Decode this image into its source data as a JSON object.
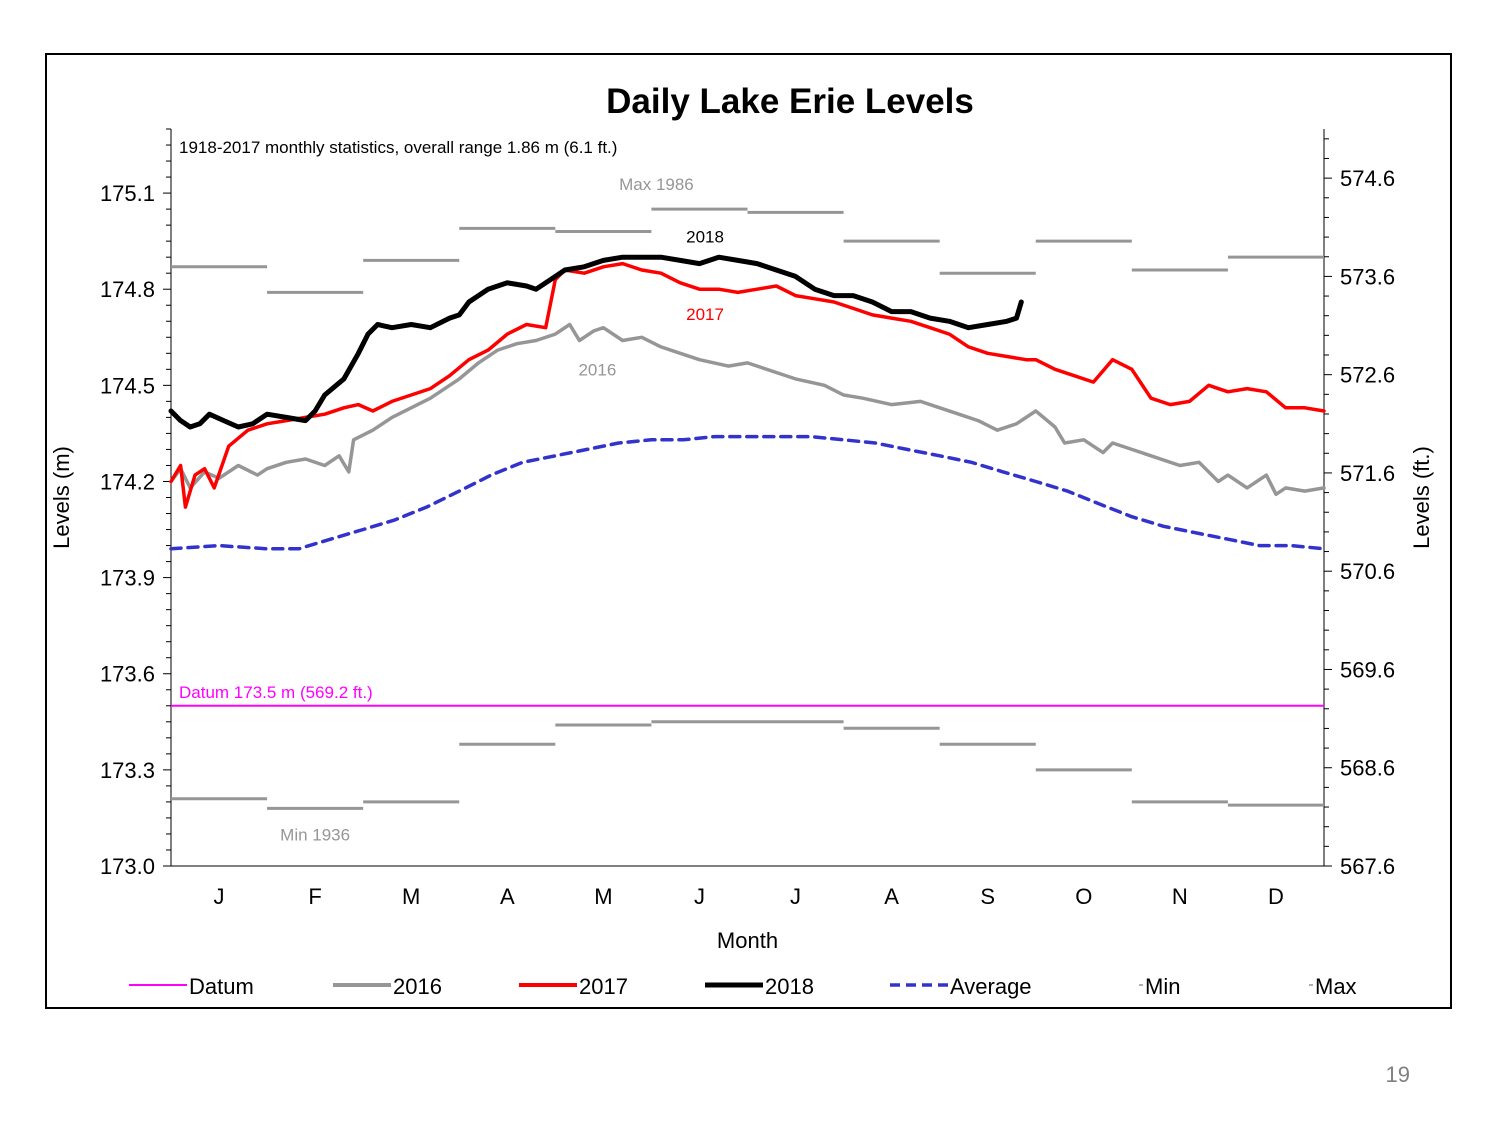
{
  "page_number": "19",
  "chart_data": {
    "type": "line",
    "title": "Daily Lake Erie Levels",
    "subtitle": "1918-2017 monthly statistics, overall range 1.86 m (6.1 ft.)",
    "xlabel": "Month",
    "ylabel": "Levels (m)",
    "ylabel_right": "Levels (ft.)",
    "categories": [
      "J",
      "F",
      "M",
      "A",
      "M",
      "J",
      "J",
      "A",
      "S",
      "O",
      "N",
      "D"
    ],
    "xlim": [
      0,
      12
    ],
    "ylim": [
      173.0,
      175.3
    ],
    "yticks": [
      "173.0",
      "173.3",
      "173.6",
      "173.9",
      "174.2",
      "174.5",
      "174.8",
      "175.1"
    ],
    "ylim_right": [
      567.6,
      575.1
    ],
    "yticks_right": [
      "567.6",
      "568.6",
      "569.6",
      "570.6",
      "571.6",
      "572.6",
      "573.6",
      "574.6"
    ],
    "grid": false,
    "legend_position": "bottom",
    "legend": [
      "Datum",
      "2016",
      "2017",
      "2018",
      "Average",
      "Min",
      "Max"
    ],
    "colors": {
      "datum": "#ff00ff",
      "s2016": "#969696",
      "s2017": "#ff0000",
      "s2018": "#000000",
      "average": "#3333cc",
      "minmax": "#969696"
    },
    "datum": {
      "value": 173.5,
      "label": "Datum 173.5 m (569.2 ft.)"
    },
    "annotations": {
      "max": "Max 1986",
      "min": "Min 1936",
      "label_2016": "2016",
      "label_2017": "2017",
      "label_2018": "2018"
    },
    "monthly_max": [
      174.87,
      174.79,
      174.89,
      174.99,
      174.98,
      175.05,
      175.04,
      174.95,
      174.85,
      174.95,
      174.86,
      174.9
    ],
    "monthly_min": [
      173.21,
      173.18,
      173.2,
      173.38,
      173.44,
      173.45,
      173.45,
      173.43,
      173.38,
      173.3,
      173.2,
      173.19
    ],
    "series": [
      {
        "name": "Average",
        "x": [
          0,
          0.5,
          1,
          1.33,
          1.66,
          2,
          2.33,
          2.66,
          3,
          3.33,
          3.66,
          4,
          4.33,
          4.66,
          5,
          5.33,
          5.66,
          6,
          6.33,
          6.66,
          7,
          7.33,
          7.66,
          8,
          8.33,
          8.66,
          9,
          9.33,
          9.66,
          10,
          10.33,
          10.66,
          11,
          11.33,
          11.66,
          12
        ],
        "values": [
          173.99,
          174.0,
          173.99,
          173.99,
          174.02,
          174.05,
          174.08,
          174.12,
          174.17,
          174.22,
          174.26,
          174.28,
          174.3,
          174.32,
          174.33,
          174.33,
          174.34,
          174.34,
          174.34,
          174.34,
          174.33,
          174.32,
          174.3,
          174.28,
          174.26,
          174.23,
          174.2,
          174.17,
          174.13,
          174.09,
          174.06,
          174.04,
          174.02,
          174.0,
          174.0,
          173.99
        ]
      },
      {
        "name": "2016",
        "x": [
          0,
          0.1,
          0.2,
          0.35,
          0.5,
          0.7,
          0.9,
          1,
          1.2,
          1.4,
          1.6,
          1.75,
          1.85,
          1.9,
          2.1,
          2.3,
          2.5,
          2.7,
          3,
          3.2,
          3.4,
          3.6,
          3.8,
          4,
          4.15,
          4.25,
          4.4,
          4.5,
          4.7,
          4.9,
          5.1,
          5.3,
          5.5,
          5.8,
          6,
          6.3,
          6.5,
          6.8,
          7,
          7.2,
          7.5,
          7.8,
          8,
          8.2,
          8.4,
          8.6,
          8.8,
          9,
          9.2,
          9.3,
          9.5,
          9.7,
          9.8,
          10,
          10.2,
          10.5,
          10.7,
          10.9,
          11,
          11.2,
          11.4,
          11.5,
          11.6,
          11.8,
          12
        ],
        "values": [
          174.2,
          174.24,
          174.18,
          174.23,
          174.21,
          174.25,
          174.22,
          174.24,
          174.26,
          174.27,
          174.25,
          174.28,
          174.23,
          174.33,
          174.36,
          174.4,
          174.43,
          174.46,
          174.52,
          174.57,
          174.61,
          174.63,
          174.64,
          174.66,
          174.69,
          174.64,
          174.67,
          174.68,
          174.64,
          174.65,
          174.62,
          174.6,
          174.58,
          174.56,
          174.57,
          174.54,
          174.52,
          174.5,
          174.47,
          174.46,
          174.44,
          174.45,
          174.43,
          174.41,
          174.39,
          174.36,
          174.38,
          174.42,
          174.37,
          174.32,
          174.33,
          174.29,
          174.32,
          174.3,
          174.28,
          174.25,
          174.26,
          174.2,
          174.22,
          174.18,
          174.22,
          174.16,
          174.18,
          174.17,
          174.18
        ]
      },
      {
        "name": "2017",
        "x": [
          0,
          0.1,
          0.15,
          0.25,
          0.35,
          0.45,
          0.6,
          0.8,
          1,
          1.2,
          1.4,
          1.6,
          1.8,
          1.95,
          2.1,
          2.3,
          2.5,
          2.7,
          2.9,
          3.1,
          3.3,
          3.5,
          3.7,
          3.9,
          4,
          4.1,
          4.3,
          4.5,
          4.7,
          4.9,
          5.1,
          5.3,
          5.5,
          5.7,
          5.9,
          6.1,
          6.3,
          6.5,
          6.7,
          6.9,
          7.1,
          7.3,
          7.5,
          7.7,
          7.9,
          8.1,
          8.3,
          8.5,
          8.7,
          8.9,
          9.0,
          9.2,
          9.4,
          9.6,
          9.8,
          10.0,
          10.2,
          10.4,
          10.6,
          10.8,
          11.0,
          11.2,
          11.4,
          11.6,
          11.8,
          12
        ],
        "values": [
          174.2,
          174.25,
          174.12,
          174.22,
          174.24,
          174.18,
          174.31,
          174.36,
          174.38,
          174.39,
          174.4,
          174.41,
          174.43,
          174.44,
          174.42,
          174.45,
          174.47,
          174.49,
          174.53,
          174.58,
          174.61,
          174.66,
          174.69,
          174.68,
          174.83,
          174.86,
          174.85,
          174.87,
          174.88,
          174.86,
          174.85,
          174.82,
          174.8,
          174.8,
          174.79,
          174.8,
          174.81,
          174.78,
          174.77,
          174.76,
          174.74,
          174.72,
          174.71,
          174.7,
          174.68,
          174.66,
          174.62,
          174.6,
          174.59,
          174.58,
          174.58,
          174.55,
          174.53,
          174.51,
          174.58,
          174.55,
          174.46,
          174.44,
          174.45,
          174.5,
          174.48,
          174.49,
          174.48,
          174.43,
          174.43,
          174.42
        ]
      },
      {
        "name": "2018",
        "x": [
          0,
          0.1,
          0.2,
          0.3,
          0.4,
          0.55,
          0.7,
          0.85,
          1,
          1.2,
          1.4,
          1.5,
          1.6,
          1.8,
          1.95,
          2.05,
          2.15,
          2.3,
          2.5,
          2.7,
          2.9,
          3.0,
          3.1,
          3.3,
          3.5,
          3.7,
          3.8,
          3.9,
          4.0,
          4.1,
          4.3,
          4.5,
          4.7,
          4.9,
          5.1,
          5.3,
          5.5,
          5.7,
          5.9,
          6.1,
          6.3,
          6.5,
          6.7,
          6.9,
          7.1,
          7.3,
          7.5,
          7.7,
          7.9,
          8.1,
          8.3,
          8.5,
          8.7,
          8.8,
          8.85
        ],
        "values": [
          174.42,
          174.39,
          174.37,
          174.38,
          174.41,
          174.39,
          174.37,
          174.38,
          174.41,
          174.4,
          174.39,
          174.42,
          174.47,
          174.52,
          174.6,
          174.66,
          174.69,
          174.68,
          174.69,
          174.68,
          174.71,
          174.72,
          174.76,
          174.8,
          174.82,
          174.81,
          174.8,
          174.82,
          174.84,
          174.86,
          174.87,
          174.89,
          174.9,
          174.9,
          174.9,
          174.89,
          174.88,
          174.9,
          174.89,
          174.88,
          174.86,
          174.84,
          174.8,
          174.78,
          174.78,
          174.76,
          174.73,
          174.73,
          174.71,
          174.7,
          174.68,
          174.69,
          174.7,
          174.71,
          174.76
        ]
      }
    ]
  }
}
